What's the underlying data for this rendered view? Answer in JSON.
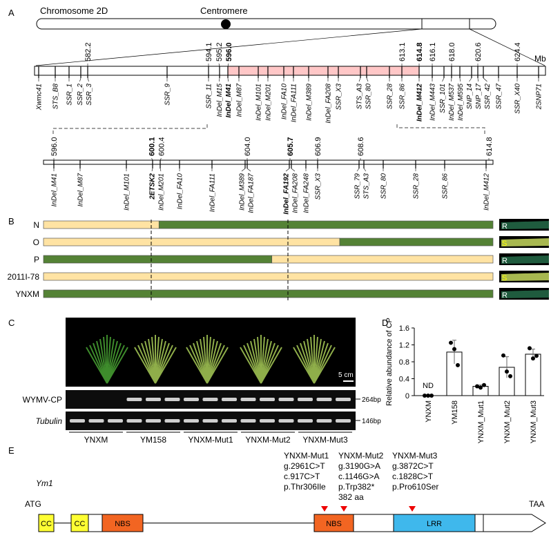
{
  "panels": {
    "a": "A",
    "b": "B",
    "c": "C",
    "d": "D",
    "e": "E"
  },
  "panel_a": {
    "chromosome_label": "Chromosome 2D",
    "centromere_label": "Centromere",
    "unit": "Mb",
    "region_color": "#ffc7c7",
    "top_markers": [
      "Xwmc41",
      "STS_B8",
      "SSR_1",
      "SSR_2",
      "SSR_3",
      "SSR_9",
      "SSR_11",
      "InDel_M15",
      "InDel_M41",
      "InDel_M87",
      "InDel_M101",
      "InDel_M201",
      "InDel_FA10",
      "InDel_FA111",
      "InDel_M389",
      "InDel_FA208",
      "SSR_X3",
      "STS_A3",
      "SSR_80",
      "SSR_28",
      "SSR_86",
      "InDel_M412",
      "InDel_M443",
      "SSR_101",
      "InDel_M537",
      "InDel_M595",
      "SNP_14",
      "SNP_17",
      "SSR_42",
      "SSR_47",
      "SSR_X40",
      "2SNP71"
    ],
    "top_bold": [
      "InDel_M41",
      "InDel_M412"
    ],
    "top_positions": [
      "582.2",
      "594.1",
      "595.2",
      "596.0",
      "613.1",
      "614.8",
      "616.1",
      "618.0",
      "620.6",
      "624.4"
    ],
    "top_positions_bold": [
      "596.0",
      "614.8"
    ],
    "fine_markers": [
      "InDel_M41",
      "InDel_M87",
      "InDel_M101",
      "2ETSK2",
      "InDel_M201",
      "InDel_FA10",
      "InDel_FA111",
      "InDel_M389",
      "InDel_FA187",
      "InDel_FA192",
      "InDel_FA208",
      "InDel_FA248",
      "SSR_X3",
      "SSR_79",
      "STS_A3",
      "SSR_80",
      "SSR_28",
      "SSR_86",
      "InDel_M412"
    ],
    "fine_bold": [
      "2ETSK2",
      "InDel_FA192"
    ],
    "fine_positions": [
      "596.0",
      "600.1",
      "600.4",
      "604.0",
      "605.7",
      "606.9",
      "608.6",
      "614.8"
    ],
    "fine_positions_bold": [
      "600.1",
      "605.7"
    ]
  },
  "panel_b": {
    "colors": {
      "resistant_genotype": "#548235",
      "susceptible_genotype": "#ffe3a3"
    },
    "lines": [
      {
        "name": "N",
        "segments": [
          [
            "S",
            0,
            0.257
          ],
          [
            "R",
            0.257,
            1
          ]
        ],
        "phenotype": "R"
      },
      {
        "name": "O",
        "segments": [
          [
            "S",
            0,
            0.659
          ],
          [
            "R",
            0.659,
            1
          ]
        ],
        "phenotype": "S"
      },
      {
        "name": "P",
        "segments": [
          [
            "R",
            0,
            0.508
          ],
          [
            "S",
            0.508,
            1
          ]
        ],
        "phenotype": "R"
      },
      {
        "name": "2011I-78",
        "segments": [
          [
            "S",
            0,
            1
          ]
        ],
        "phenotype": "S"
      },
      {
        "name": "YNXM",
        "segments": [
          [
            "R",
            0,
            1
          ]
        ],
        "phenotype": "R"
      }
    ]
  },
  "panel_c": {
    "scale_bar": "5 cm",
    "gel_rows": [
      {
        "label": "WYMV-CP",
        "size": "264bp"
      },
      {
        "label": "Tubulin",
        "size": "146bp"
      }
    ],
    "groups": [
      "YNXM",
      "YM158",
      "YNXM-Mut1",
      "YNXM-Mut2",
      "YNXM-Mut3"
    ],
    "cp_band_present": [
      false,
      false,
      false,
      true,
      true,
      true,
      true,
      true,
      true,
      true,
      true,
      true,
      true,
      true,
      true
    ]
  },
  "chart_data": {
    "type": "bar",
    "ylabel": "Relative abundance of CP",
    "ylim": [
      0,
      1.6
    ],
    "yticks": [
      "0",
      "0.4",
      "0.8",
      "1.2",
      "1.6"
    ],
    "categories": [
      "YNXM",
      "YM158",
      "YNXM_Mut1",
      "YNXM_Mut2",
      "YNXM_Mut3"
    ],
    "values": [
      0,
      1.03,
      0.22,
      0.67,
      0.98
    ],
    "errors": [
      0,
      0.28,
      0.03,
      0.25,
      0.12
    ],
    "points": [
      [
        0,
        0,
        0
      ],
      [
        1.25,
        1.1,
        0.72
      ],
      [
        0.22,
        0.19,
        0.25
      ],
      [
        0.95,
        0.57,
        0.46
      ],
      [
        1.12,
        0.88,
        0.94
      ]
    ],
    "annotations": [
      {
        "category": "YNXM",
        "text": "ND"
      }
    ]
  },
  "panel_e": {
    "gene": "Ym1",
    "start": "ATG",
    "stop": "TAA",
    "domains": [
      "CC",
      "CC",
      "NBS",
      "NBS",
      "LRR"
    ],
    "colors": {
      "CC": "#ffff33",
      "NBS": "#f26522",
      "LRR": "#3fb8ec"
    },
    "mutations": [
      {
        "name": "YNXM-Mut1",
        "g": "g.2961C>T",
        "c": "c.917C>T",
        "p": "p.Thr306Ile",
        "extra": ""
      },
      {
        "name": "YNXM-Mut2",
        "g": "g.3190G>A",
        "c": "c.1146G>A",
        "p": "p.Trp382*",
        "extra": "382 aa"
      },
      {
        "name": "YNXM-Mut3",
        "g": "g.3872C>T",
        "c": "c.1828C>T",
        "p": "p.Pro610Ser",
        "extra": ""
      }
    ]
  }
}
